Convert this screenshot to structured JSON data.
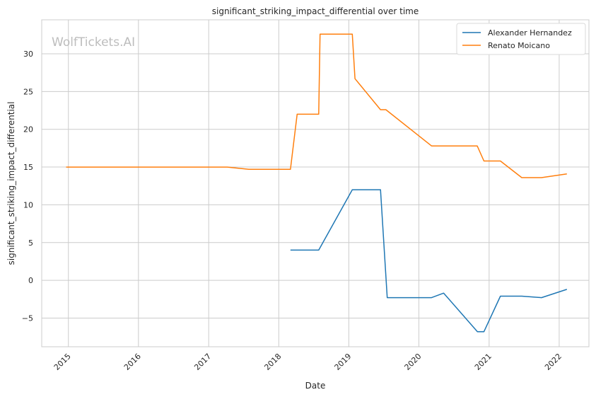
{
  "watermark": "WolfTickets.AI",
  "chart_data": {
    "type": "line",
    "title": "significant_striking_impact_differential over time",
    "xlabel": "Date",
    "ylabel": "significant_striking_impact_differential",
    "x_ticks": [
      "2015",
      "2016",
      "2017",
      "2018",
      "2019",
      "2020",
      "2021",
      "2022"
    ],
    "y_ticks": [
      -5,
      0,
      5,
      10,
      15,
      20,
      25,
      30
    ],
    "xlim": [
      "2014-08-15",
      "2022-06-05"
    ],
    "ylim": [
      -8.8,
      34.5
    ],
    "grid": true,
    "legend_position": "top-right",
    "series": [
      {
        "name": "Alexander Hernandez",
        "color": "#1f77b4",
        "points": [
          [
            "2018-03-03",
            4.0
          ],
          [
            "2018-07-28",
            4.0
          ],
          [
            "2019-01-19",
            12.0
          ],
          [
            "2019-06-15",
            12.0
          ],
          [
            "2019-07-20",
            -2.3
          ],
          [
            "2020-03-07",
            -2.3
          ],
          [
            "2020-05-09",
            -1.7
          ],
          [
            "2020-11-01",
            -6.8
          ],
          [
            "2020-12-05",
            -6.8
          ],
          [
            "2021-03-01",
            -2.1
          ],
          [
            "2021-06-20",
            -2.1
          ],
          [
            "2021-10-01",
            -2.3
          ],
          [
            "2022-02-10",
            -1.2
          ]
        ]
      },
      {
        "name": "Renato Moicano",
        "color": "#ff7f0e",
        "points": [
          [
            "2014-12-20",
            15.0
          ],
          [
            "2017-04-08",
            15.0
          ],
          [
            "2017-07-29",
            14.7
          ],
          [
            "2018-03-03",
            14.7
          ],
          [
            "2018-04-07",
            22.0
          ],
          [
            "2018-07-28",
            22.0
          ],
          [
            "2018-08-04",
            32.6
          ],
          [
            "2019-01-19",
            32.6
          ],
          [
            "2019-02-02",
            26.7
          ],
          [
            "2019-06-15",
            22.6
          ],
          [
            "2019-07-13",
            22.6
          ],
          [
            "2020-03-07",
            17.8
          ],
          [
            "2020-10-31",
            17.8
          ],
          [
            "2020-12-05",
            15.8
          ],
          [
            "2021-03-01",
            15.8
          ],
          [
            "2021-06-20",
            13.6
          ],
          [
            "2021-10-01",
            13.6
          ],
          [
            "2022-02-10",
            14.1
          ]
        ]
      }
    ]
  }
}
